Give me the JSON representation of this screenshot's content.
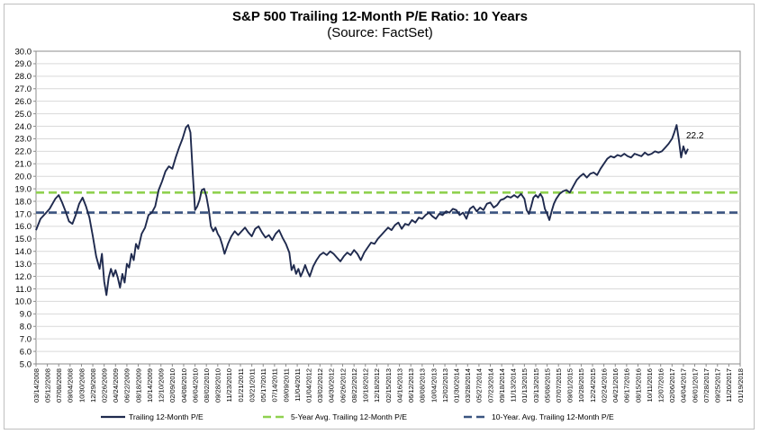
{
  "chart_data": {
    "type": "line",
    "title": "S&P 500 Trailing 12-Month P/E Ratio: 10 Years",
    "subtitle": "(Source: FactSet)",
    "ylim": [
      5.0,
      30.0
    ],
    "yticks": [
      "5.0",
      "6.0",
      "7.0",
      "8.0",
      "9.0",
      "10.0",
      "11.0",
      "12.0",
      "13.0",
      "14.0",
      "15.0",
      "16.0",
      "17.0",
      "18.0",
      "19.0",
      "20.0",
      "21.0",
      "22.0",
      "23.0",
      "24.0",
      "25.0",
      "26.0",
      "27.0",
      "28.0",
      "29.0",
      "30.0"
    ],
    "xticks": [
      "03/14/2008",
      "05/12/2008",
      "07/08/2008",
      "09/04/2008",
      "10/30/2008",
      "12/29/2008",
      "02/26/2009",
      "04/24/2009",
      "06/22/2009",
      "08/18/2009",
      "10/14/2009",
      "12/10/2009",
      "02/09/2010",
      "04/08/2010",
      "06/04/2010",
      "08/02/2010",
      "09/28/2010",
      "11/23/2010",
      "01/21/2011",
      "03/21/2011",
      "05/17/2011",
      "07/14/2011",
      "09/09/2011",
      "11/04/2011",
      "01/04/2012",
      "03/02/2012",
      "04/30/2012",
      "06/26/2012",
      "08/22/2012",
      "10/18/2012",
      "12/18/2012",
      "02/15/2013",
      "04/16/2013",
      "06/12/2013",
      "08/08/2013",
      "10/04/2013",
      "12/02/2013",
      "01/30/2014",
      "03/28/2014",
      "05/27/2014",
      "07/23/2014",
      "09/18/2014",
      "11/13/2014",
      "01/13/2015",
      "03/13/2015",
      "05/08/2015",
      "07/07/2015",
      "09/01/2015",
      "10/28/2015",
      "12/24/2015",
      "02/24/2016",
      "04/21/2016",
      "06/17/2016",
      "08/15/2016",
      "10/11/2016",
      "12/07/2016",
      "02/06/2017",
      "04/04/2017",
      "06/01/2017",
      "07/28/2017",
      "09/25/2017",
      "11/20/2017",
      "01/19/2018"
    ],
    "series": [
      {
        "name": "Trailing 12-Month P/E",
        "color": "#1f2a4e",
        "points": [
          [
            0,
            15.7
          ],
          [
            0.4,
            16.6
          ],
          [
            0.8,
            17.0
          ],
          [
            1.2,
            17.4
          ],
          [
            1.7,
            18.2
          ],
          [
            2.0,
            18.5
          ],
          [
            2.3,
            17.9
          ],
          [
            2.6,
            17.2
          ],
          [
            2.9,
            16.4
          ],
          [
            3.2,
            16.2
          ],
          [
            3.5,
            16.9
          ],
          [
            3.8,
            17.8
          ],
          [
            4.1,
            18.3
          ],
          [
            4.4,
            17.6
          ],
          [
            4.7,
            16.7
          ],
          [
            5.0,
            15.2
          ],
          [
            5.3,
            13.6
          ],
          [
            5.6,
            12.6
          ],
          [
            5.8,
            13.8
          ],
          [
            6.0,
            11.6
          ],
          [
            6.2,
            10.5
          ],
          [
            6.4,
            11.9
          ],
          [
            6.6,
            12.6
          ],
          [
            6.8,
            12.0
          ],
          [
            7.0,
            12.5
          ],
          [
            7.2,
            11.9
          ],
          [
            7.4,
            11.1
          ],
          [
            7.6,
            12.2
          ],
          [
            7.8,
            11.5
          ],
          [
            8.0,
            13.0
          ],
          [
            8.2,
            12.7
          ],
          [
            8.4,
            13.8
          ],
          [
            8.6,
            13.3
          ],
          [
            8.8,
            14.6
          ],
          [
            9.0,
            14.2
          ],
          [
            9.3,
            15.4
          ],
          [
            9.6,
            15.9
          ],
          [
            9.9,
            16.9
          ],
          [
            10.2,
            17.1
          ],
          [
            10.5,
            17.6
          ],
          [
            10.8,
            18.9
          ],
          [
            11.1,
            19.6
          ],
          [
            11.4,
            20.4
          ],
          [
            11.7,
            20.8
          ],
          [
            12.0,
            20.6
          ],
          [
            12.3,
            21.5
          ],
          [
            12.6,
            22.3
          ],
          [
            12.9,
            23.0
          ],
          [
            13.2,
            23.9
          ],
          [
            13.4,
            24.1
          ],
          [
            13.6,
            23.5
          ],
          [
            13.8,
            20.2
          ],
          [
            14.0,
            17.3
          ],
          [
            14.2,
            17.6
          ],
          [
            14.4,
            18.1
          ],
          [
            14.6,
            18.9
          ],
          [
            14.8,
            19.0
          ],
          [
            15.0,
            18.4
          ],
          [
            15.2,
            17.4
          ],
          [
            15.4,
            16.0
          ],
          [
            15.6,
            15.6
          ],
          [
            15.8,
            15.9
          ],
          [
            16.0,
            15.4
          ],
          [
            16.2,
            15.1
          ],
          [
            16.4,
            14.5
          ],
          [
            16.6,
            13.8
          ],
          [
            16.9,
            14.6
          ],
          [
            17.2,
            15.2
          ],
          [
            17.5,
            15.6
          ],
          [
            17.8,
            15.3
          ],
          [
            18.1,
            15.6
          ],
          [
            18.4,
            15.9
          ],
          [
            18.7,
            15.5
          ],
          [
            19.0,
            15.2
          ],
          [
            19.3,
            15.8
          ],
          [
            19.6,
            16.0
          ],
          [
            19.9,
            15.5
          ],
          [
            20.2,
            15.1
          ],
          [
            20.5,
            15.3
          ],
          [
            20.8,
            14.9
          ],
          [
            21.1,
            15.4
          ],
          [
            21.4,
            15.7
          ],
          [
            21.7,
            15.1
          ],
          [
            22.0,
            14.6
          ],
          [
            22.3,
            13.9
          ],
          [
            22.5,
            12.5
          ],
          [
            22.7,
            12.9
          ],
          [
            22.9,
            12.2
          ],
          [
            23.1,
            12.6
          ],
          [
            23.3,
            12.0
          ],
          [
            23.5,
            12.4
          ],
          [
            23.7,
            12.9
          ],
          [
            23.9,
            12.4
          ],
          [
            24.1,
            12.0
          ],
          [
            24.4,
            12.8
          ],
          [
            24.7,
            13.3
          ],
          [
            25.0,
            13.7
          ],
          [
            25.3,
            13.9
          ],
          [
            25.6,
            13.7
          ],
          [
            25.9,
            14.0
          ],
          [
            26.2,
            13.8
          ],
          [
            26.5,
            13.5
          ],
          [
            26.8,
            13.2
          ],
          [
            27.1,
            13.6
          ],
          [
            27.4,
            13.9
          ],
          [
            27.7,
            13.7
          ],
          [
            28.0,
            14.1
          ],
          [
            28.3,
            13.8
          ],
          [
            28.6,
            13.3
          ],
          [
            28.9,
            13.9
          ],
          [
            29.2,
            14.3
          ],
          [
            29.5,
            14.7
          ],
          [
            29.8,
            14.6
          ],
          [
            30.1,
            15.0
          ],
          [
            30.4,
            15.3
          ],
          [
            30.7,
            15.6
          ],
          [
            31.0,
            15.9
          ],
          [
            31.3,
            15.7
          ],
          [
            31.6,
            16.1
          ],
          [
            31.9,
            16.3
          ],
          [
            32.2,
            15.8
          ],
          [
            32.5,
            16.2
          ],
          [
            32.8,
            16.1
          ],
          [
            33.1,
            16.5
          ],
          [
            33.4,
            16.3
          ],
          [
            33.7,
            16.7
          ],
          [
            34.0,
            16.6
          ],
          [
            34.3,
            16.9
          ],
          [
            34.6,
            17.1
          ],
          [
            34.9,
            16.8
          ],
          [
            35.2,
            16.6
          ],
          [
            35.5,
            17.0
          ],
          [
            35.8,
            16.9
          ],
          [
            36.1,
            17.2
          ],
          [
            36.4,
            17.1
          ],
          [
            36.7,
            17.4
          ],
          [
            37.0,
            17.3
          ],
          [
            37.3,
            16.9
          ],
          [
            37.6,
            17.1
          ],
          [
            37.9,
            16.6
          ],
          [
            38.2,
            17.4
          ],
          [
            38.5,
            17.6
          ],
          [
            38.8,
            17.2
          ],
          [
            39.1,
            17.5
          ],
          [
            39.4,
            17.3
          ],
          [
            39.7,
            17.8
          ],
          [
            40.0,
            17.9
          ],
          [
            40.3,
            17.5
          ],
          [
            40.6,
            17.7
          ],
          [
            40.9,
            18.1
          ],
          [
            41.2,
            18.2
          ],
          [
            41.5,
            18.4
          ],
          [
            41.8,
            18.3
          ],
          [
            42.1,
            18.5
          ],
          [
            42.4,
            18.3
          ],
          [
            42.7,
            18.6
          ],
          [
            43.0,
            18.2
          ],
          [
            43.2,
            17.3
          ],
          [
            43.4,
            17.0
          ],
          [
            43.6,
            17.6
          ],
          [
            43.8,
            18.3
          ],
          [
            44.0,
            18.5
          ],
          [
            44.2,
            18.3
          ],
          [
            44.4,
            18.6
          ],
          [
            44.6,
            18.3
          ],
          [
            44.8,
            17.4
          ],
          [
            45.0,
            17.0
          ],
          [
            45.2,
            16.5
          ],
          [
            45.4,
            17.2
          ],
          [
            45.6,
            17.8
          ],
          [
            45.8,
            18.2
          ],
          [
            46.1,
            18.6
          ],
          [
            46.4,
            18.8
          ],
          [
            46.7,
            18.9
          ],
          [
            47.0,
            18.7
          ],
          [
            47.3,
            19.2
          ],
          [
            47.6,
            19.7
          ],
          [
            47.9,
            20.0
          ],
          [
            48.2,
            20.2
          ],
          [
            48.5,
            19.9
          ],
          [
            48.8,
            20.2
          ],
          [
            49.1,
            20.3
          ],
          [
            49.4,
            20.1
          ],
          [
            49.7,
            20.6
          ],
          [
            50.0,
            21.0
          ],
          [
            50.3,
            21.4
          ],
          [
            50.6,
            21.6
          ],
          [
            50.9,
            21.5
          ],
          [
            51.2,
            21.7
          ],
          [
            51.5,
            21.6
          ],
          [
            51.8,
            21.8
          ],
          [
            52.1,
            21.6
          ],
          [
            52.4,
            21.5
          ],
          [
            52.7,
            21.8
          ],
          [
            53.0,
            21.7
          ],
          [
            53.3,
            21.6
          ],
          [
            53.6,
            21.9
          ],
          [
            53.9,
            21.7
          ],
          [
            54.2,
            21.8
          ],
          [
            54.5,
            22.0
          ],
          [
            54.8,
            21.9
          ],
          [
            55.1,
            22.0
          ],
          [
            55.4,
            22.3
          ],
          [
            55.7,
            22.6
          ],
          [
            56.0,
            23.0
          ],
          [
            56.2,
            23.5
          ],
          [
            56.4,
            24.1
          ],
          [
            56.6,
            22.9
          ],
          [
            56.8,
            21.5
          ],
          [
            57.0,
            22.4
          ],
          [
            57.2,
            21.8
          ],
          [
            57.4,
            22.2
          ]
        ]
      },
      {
        "name": "5-Year Avg. Trailing 12-Month P/E",
        "color": "#8fd14f",
        "value": 18.7
      },
      {
        "name": "10-Year. Avg. Trailing 12-Month P/E",
        "color": "#3a5480",
        "value": 17.1
      }
    ],
    "end_label": "22.2",
    "grid": true,
    "legend_position": "bottom"
  }
}
